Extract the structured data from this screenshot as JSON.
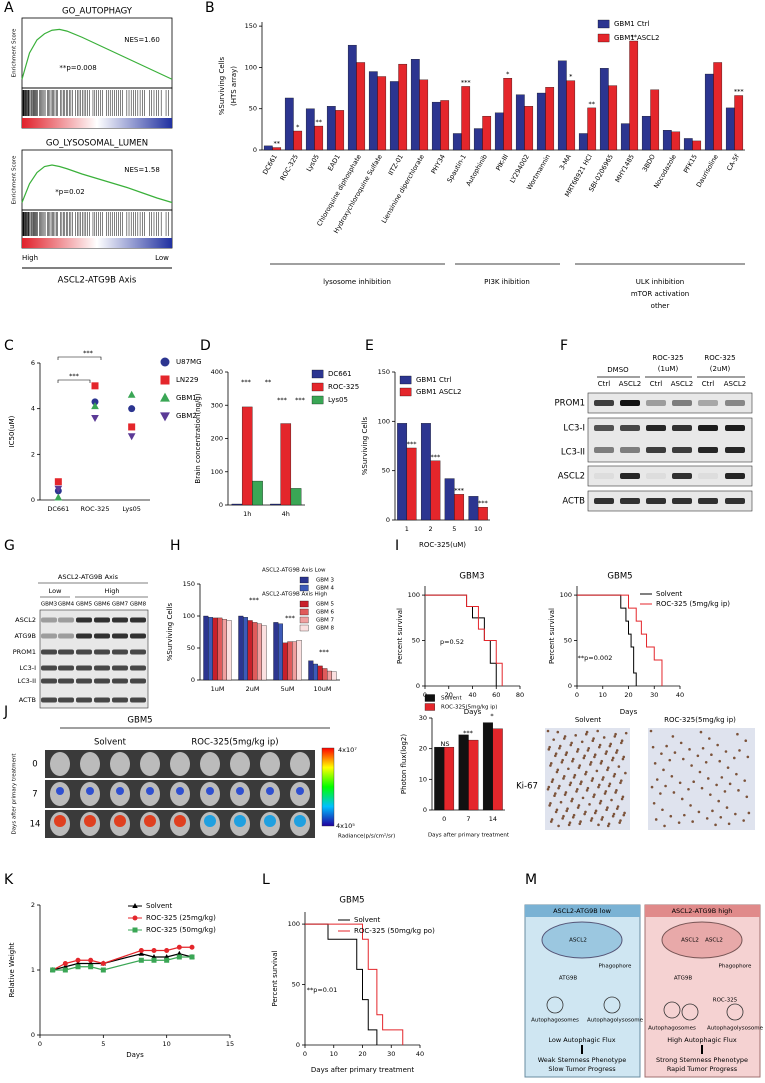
{
  "chart_data": [
    {
      "type": "line",
      "title": "GO_AUTOPHAGY",
      "ylabel": "Enrichment Score",
      "x": [
        0,
        5,
        10,
        15,
        20,
        25,
        30,
        40,
        50,
        60,
        70,
        80,
        90,
        100
      ],
      "xlim": [
        0,
        100
      ],
      "ylim": [
        -0.1,
        0.7
      ],
      "series": [
        {
          "color": "#3ab03a",
          "values": [
            0,
            0.3,
            0.45,
            0.52,
            0.56,
            0.57,
            0.55,
            0.48,
            0.4,
            0.32,
            0.24,
            0.16,
            0.08,
            0
          ]
        }
      ],
      "annotations": [
        {
          "text": "NES=1.60"
        },
        {
          "text": "**p=0.008"
        }
      ]
    },
    {
      "type": "line",
      "title": "GO_LYSOSOMAL_LUMEN",
      "ylabel": "Enrichment Score",
      "x": [
        0,
        5,
        10,
        15,
        20,
        25,
        30,
        40,
        50,
        60,
        70,
        80,
        90,
        100
      ],
      "xlim": [
        0,
        100
      ],
      "ylim": [
        -0.1,
        0.7
      ],
      "series": [
        {
          "color": "#3ab03a",
          "values": [
            0,
            0.25,
            0.4,
            0.48,
            0.5,
            0.48,
            0.45,
            0.38,
            0.32,
            0.26,
            0.2,
            0.13,
            0.06,
            0
          ]
        }
      ],
      "annotations": [
        {
          "text": "NES=1.58"
        },
        {
          "text": "*p=0.02"
        }
      ]
    },
    {
      "type": "bar",
      "ylabel": [
        "%Surviving Cells",
        "(HTS array)"
      ],
      "categories": [
        "DC661",
        "ROC-325",
        "Lys05",
        "EAD1",
        "Chloroquine diphosphate",
        "Hydroxychloroquine Sulfate",
        "IITZ-01",
        "Liensinine diperchlorate",
        "PHY34",
        "Spautin-1",
        "Autophinib",
        "PIK-III",
        "LY294002",
        "Wortmannin",
        "3-MA",
        "MRT68921 HCl",
        "SBI-0206965",
        "MHY1485",
        "3BDO",
        "Nocodazole",
        "PFK15",
        "Daurisoline",
        "CA-5f"
      ],
      "series": [
        {
          "name": "GBM1 Ctrl",
          "color": "#2c3590",
          "values": [
            5,
            63,
            50,
            53,
            127,
            95,
            83,
            110,
            58,
            20,
            26,
            45,
            67,
            69,
            108,
            20,
            99,
            32,
            41,
            24,
            14,
            92,
            51
          ]
        },
        {
          "name": "GBM1 ASCL2",
          "color": "#e4262b",
          "values": [
            3,
            23,
            29,
            48,
            106,
            89,
            104,
            85,
            60,
            77,
            41,
            87,
            53,
            76,
            84,
            51,
            78,
            132,
            73,
            22,
            11,
            106,
            66
          ]
        }
      ],
      "ylim": [
        0,
        155
      ],
      "yticks": [
        0,
        50,
        100,
        150
      ],
      "annotations": [
        {
          "text": "**",
          "category": "DC661"
        },
        {
          "text": "*",
          "category": "ROC-325"
        },
        {
          "text": "**",
          "category": "Lys05"
        },
        {
          "text": "***",
          "category": "Spautin-1"
        },
        {
          "text": "*",
          "category": "PIK-III"
        },
        {
          "text": "*",
          "category": "3-MA"
        },
        {
          "text": "**",
          "category": "MRT68921 HCl"
        },
        {
          "text": "**",
          "category": "MHY1485"
        },
        {
          "text": "***",
          "category": "CA-5f"
        }
      ]
    },
    {
      "type": "scatter",
      "ylabel": "IC50(uM)",
      "categories": [
        "DC661",
        "ROC-325",
        "Lys05"
      ],
      "series": [
        {
          "name": "U87MG",
          "color": "#2c3590",
          "marker": "circle",
          "values": [
            0.4,
            4.3,
            4.0
          ]
        },
        {
          "name": "LN229",
          "color": "#e4262b",
          "marker": "square",
          "values": [
            0.8,
            5.0,
            3.2
          ]
        },
        {
          "name": "GBM1",
          "color": "#3aa655",
          "marker": "triangle",
          "values": [
            0.1,
            4.1,
            4.6
          ]
        },
        {
          "name": "GBM2",
          "color": "#5b3a96",
          "marker": "triangle-down",
          "values": [
            0.5,
            3.6,
            2.8
          ]
        }
      ],
      "ylim": [
        0,
        6
      ],
      "yticks": [
        0,
        2,
        4,
        6
      ],
      "annotations": [
        {
          "text": "***"
        },
        {
          "text": "***"
        }
      ]
    },
    {
      "type": "bar",
      "ylabel": "Brain concentration(ng/g)",
      "categories": [
        "1h",
        "4h"
      ],
      "series": [
        {
          "name": "DC661",
          "color": "#2c3590",
          "values": [
            3,
            3
          ]
        },
        {
          "name": "ROC-325",
          "color": "#e4262b",
          "values": [
            295,
            245
          ]
        },
        {
          "name": "Lys05",
          "color": "#3aa655",
          "values": [
            72,
            50
          ]
        }
      ],
      "ylim": [
        0,
        400
      ],
      "yticks": [
        0,
        100,
        200,
        300,
        400
      ],
      "annotations": [
        {
          "text": "***"
        },
        {
          "text": "**"
        },
        {
          "text": "***"
        },
        {
          "text": "***"
        }
      ]
    },
    {
      "type": "bar",
      "ylabel": "%Surviving Cells",
      "xlabel": "ROC-325(uM)",
      "categories": [
        "1",
        "2",
        "5",
        "10"
      ],
      "series": [
        {
          "name": "GBM1 Ctrl",
          "color": "#2c3590",
          "values": [
            98,
            98,
            42,
            24
          ]
        },
        {
          "name": "GBM1 ASCL2",
          "color": "#e4262b",
          "values": [
            73,
            60,
            26,
            13
          ]
        }
      ],
      "ylim": [
        0,
        150
      ],
      "yticks": [
        0,
        50,
        100,
        150
      ],
      "annotations": [
        {
          "text": "***",
          "category": "1"
        },
        {
          "text": "***",
          "category": "2"
        },
        {
          "text": "***",
          "category": "5"
        },
        {
          "text": "***",
          "category": "10"
        }
      ]
    },
    {
      "type": "bar",
      "ylabel": "%Surviving Cells",
      "categories": [
        "1uM",
        "2uM",
        "5uM",
        "10uM"
      ],
      "legend_groups": [
        "ASCL2-ATG9B Axis Low",
        "ASCL2-ATG9B Axis High"
      ],
      "series": [
        {
          "name": "GBM 3",
          "color": "#2c3590",
          "values": [
            100,
            100,
            90,
            30
          ]
        },
        {
          "name": "GBM 4",
          "color": "#3d5ab8",
          "values": [
            98,
            98,
            88,
            25
          ]
        },
        {
          "name": "GBM 5",
          "color": "#c8202a",
          "values": [
            97,
            93,
            58,
            22
          ]
        },
        {
          "name": "GBM 6",
          "color": "#e05a5a",
          "values": [
            97,
            90,
            60,
            18
          ]
        },
        {
          "name": "GBM 7",
          "color": "#f0a0a0",
          "values": [
            95,
            88,
            60,
            14
          ]
        },
        {
          "name": "GBM 8",
          "color": "#fbe0e0",
          "values": [
            93,
            85,
            62,
            13
          ]
        }
      ],
      "ylim": [
        0,
        150
      ],
      "yticks": [
        0,
        50,
        100,
        150
      ],
      "annotations": [
        {
          "text": "***"
        },
        {
          "text": "***"
        },
        {
          "text": "***"
        }
      ]
    },
    {
      "type": "survival",
      "title": "GBM3",
      "ylabel": "Percent survival",
      "xlabel": "Days",
      "xlim": [
        0,
        80
      ],
      "xticks": [
        0,
        20,
        40,
        60,
        80
      ],
      "ylim": [
        0,
        110
      ],
      "yticks": [
        0,
        50,
        100
      ],
      "series": [
        {
          "color": "#000000",
          "x": [
            0,
            35,
            40,
            50,
            55,
            60
          ],
          "values": [
            100,
            87.5,
            75,
            50,
            25,
            0
          ]
        },
        {
          "color": "#e4262b",
          "x": [
            0,
            35,
            45,
            50,
            60,
            65
          ],
          "values": [
            100,
            87.5,
            62.5,
            50,
            25,
            0
          ]
        }
      ],
      "annotations": [
        {
          "text": "p=0.52"
        }
      ]
    },
    {
      "type": "survival",
      "title": "GBM5",
      "ylabel": "Percent survival",
      "xlabel": "Days",
      "xlim": [
        0,
        40
      ],
      "xticks": [
        0,
        10,
        20,
        30,
        40
      ],
      "ylim": [
        0,
        110
      ],
      "yticks": [
        0,
        50,
        100
      ],
      "series": [
        {
          "name": "Solvent",
          "color": "#000000",
          "x": [
            0,
            17,
            19,
            20,
            21,
            22,
            23
          ],
          "values": [
            100,
            85.7,
            71.4,
            57.1,
            42.9,
            14.3,
            0
          ]
        },
        {
          "name": "ROC-325 (5mg/kg ip)",
          "color": "#e4262b",
          "x": [
            0,
            20,
            23,
            25,
            27,
            30,
            33
          ],
          "values": [
            100,
            85.7,
            71.4,
            57.1,
            42.9,
            28.6,
            0
          ]
        }
      ],
      "annotations": [
        {
          "text": "**p=0.002"
        }
      ]
    },
    {
      "type": "bar",
      "ylabel": "Photon flux(log2)",
      "xlabel": "Days after primary treatment",
      "categories": [
        "0",
        "7",
        "14"
      ],
      "series": [
        {
          "name": "Solvent",
          "color": "#111111",
          "values": [
            20.5,
            24.5,
            28.5
          ]
        },
        {
          "name": "ROC-325(5mg/kg ip)",
          "color": "#e4262b",
          "values": [
            20.5,
            22.8,
            26.5
          ]
        }
      ],
      "ylim": [
        0,
        30
      ],
      "yticks": [
        0,
        10,
        20,
        30
      ],
      "annotations": [
        {
          "text": "NS"
        },
        {
          "text": "***"
        },
        {
          "text": "*"
        }
      ]
    },
    {
      "type": "line",
      "ylabel": "Relative Weight",
      "xlabel": "Days",
      "x": [
        1,
        2,
        3,
        4,
        5,
        8,
        9,
        10,
        11,
        12
      ],
      "xlim": [
        0,
        15
      ],
      "xticks": [
        0,
        5,
        10,
        15
      ],
      "ylim": [
        0,
        2
      ],
      "yticks": [
        0,
        1,
        2
      ],
      "series": [
        {
          "name": "Solvent",
          "color": "#000000",
          "marker": "triangle",
          "values": [
            1,
            1.05,
            1.1,
            1.1,
            1.1,
            1.25,
            1.2,
            1.2,
            1.25,
            1.2
          ]
        },
        {
          "name": "ROC-325 (25mg/kg)",
          "color": "#e4262b",
          "marker": "circle",
          "values": [
            1,
            1.1,
            1.15,
            1.15,
            1.1,
            1.3,
            1.3,
            1.3,
            1.35,
            1.35
          ]
        },
        {
          "name": "ROC-325 (50mg/kg)",
          "color": "#3aa655",
          "marker": "square",
          "values": [
            1,
            1,
            1.05,
            1.05,
            1,
            1.15,
            1.15,
            1.15,
            1.2,
            1.2
          ]
        }
      ]
    },
    {
      "type": "survival",
      "title": "GBM5",
      "ylabel": "Percent survival",
      "xlabel": "Days after primary treatment",
      "xlim": [
        0,
        40
      ],
      "xticks": [
        0,
        10,
        20,
        30,
        40
      ],
      "ylim": [
        0,
        110
      ],
      "yticks": [
        0,
        50,
        100
      ],
      "series": [
        {
          "name": "Solvent",
          "color": "#000000",
          "x": [
            0,
            8,
            18,
            20,
            22,
            25
          ],
          "values": [
            100,
            87.5,
            62.5,
            37.5,
            12.5,
            0
          ]
        },
        {
          "name": "ROC-325 (50mg/kg po)",
          "color": "#e4262b",
          "x": [
            0,
            20,
            22,
            25,
            27,
            34
          ],
          "values": [
            100,
            87.5,
            62.5,
            25,
            12.5,
            0
          ]
        }
      ],
      "annotations": [
        {
          "text": "**p=0.01"
        }
      ]
    }
  ],
  "panel_labels": [
    "A",
    "B",
    "C",
    "D",
    "E",
    "F",
    "G",
    "H",
    "I",
    "J",
    "K",
    "L",
    "M"
  ],
  "panel_A": {
    "high": "High",
    "low": "Low",
    "axis": "ASCL2-ATG9B Axis"
  },
  "panel_B": {
    "groups": [
      "lysosome inhibition",
      "PI3K ihibition",
      "ULK inhibition",
      "mTOR activation",
      "other"
    ]
  },
  "panel_F": {
    "treatments": [
      "DMSO",
      "ROC-325",
      "(1uM)",
      "ROC-325",
      "(2uM)"
    ],
    "lanes": [
      "Ctrl",
      "ASCL2",
      "Ctrl",
      "ASCL2",
      "Ctrl",
      "ASCL2"
    ],
    "proteins": [
      "PROM1",
      "LC3-I",
      "LC3-II",
      "ASCL2",
      "ACTB"
    ]
  },
  "panel_G": {
    "header": "ASCL2-ATG9B Axis",
    "groups": [
      "Low",
      "High"
    ],
    "lanes": [
      "GBM3",
      "GBM4",
      "GBM5",
      "GBM6",
      "GBM7",
      "GBM8"
    ],
    "proteins": [
      "ASCL2",
      "ATG9B",
      "PROM1",
      "LC3-I",
      "LC3-II",
      "ACTB"
    ]
  },
  "panel_J": {
    "model": "GBM5",
    "groups": [
      "Solvent",
      "ROC-325(5mg/kg ip)"
    ],
    "days": [
      "0",
      "7",
      "14"
    ],
    "days_label": "Days after primary treatment",
    "scale_max": "4x10⁷",
    "scale_min": "4x10⁵",
    "scale_unit": "Radiance(p/s/cm²/sr)",
    "stain": "Ki-67",
    "stain_groups": [
      "Solvent",
      "ROC-325(5mg/kg ip)"
    ]
  },
  "panel_M": {
    "left": [
      "ASCL2-ATG9B low",
      "ASCL2",
      "ATG9B",
      "Phagophore",
      "Autophagosomes",
      "Autophagolysosome",
      "Low Autophagic Flux",
      "Weak Stemness Phenotype",
      "Slow Tumor Progress"
    ],
    "right": [
      "ASCL2-ATG9B high",
      "ASCL2",
      "ASCL2",
      "ATG9B",
      "Phagophore",
      "ROC-325",
      "Autophagosomes",
      "Autophagolysosome",
      "High Autophagic Flux",
      "Strong Stemness Phenotype",
      "Rapid Tumor Progress"
    ]
  }
}
